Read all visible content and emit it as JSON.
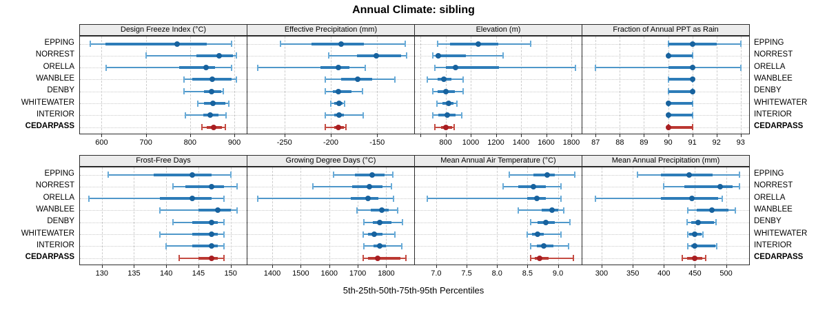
{
  "title": "Annual Climate: sibling",
  "caption": "5th-25th-50th-75th-95th Percentiles",
  "sites": [
    "EPPING",
    "NORREST",
    "ORELLA",
    "WANBLEE",
    "DENBY",
    "WHITEWATER",
    "INTERIOR",
    "CEDARPASS"
  ],
  "highlight_site": "CEDARPASS",
  "colors": {
    "normal": {
      "dot": "#17629e",
      "thick": "#2d7cb8",
      "thin": "#4f97c9",
      "cap": "#68abd8"
    },
    "highlight": {
      "dot": "#a81e22",
      "thick": "#bb3832",
      "thin": "#c44b42",
      "cap": "#c44b42"
    },
    "grid": "#c9c9c9",
    "strip_bg": "#ececec",
    "border": "#2a2a2a"
  },
  "chart_data": {
    "type": "dotplot-intervals",
    "percentile_labels": [
      "5th",
      "25th",
      "50th",
      "75th",
      "95th"
    ],
    "row_categories": [
      "EPPING",
      "NORREST",
      "ORELLA",
      "WANBLEE",
      "DENBY",
      "WHITEWATER",
      "INTERIOR",
      "CEDARPASS"
    ],
    "panels": [
      {
        "id": "design-freeze-index",
        "title": "Design Freeze Index (°C)",
        "row": 0,
        "col": 0,
        "xlim": [
          551,
          928
        ],
        "ticks": [
          {
            "v": 600,
            "label": "600"
          },
          {
            "v": 700,
            "label": "700"
          },
          {
            "v": 800,
            "label": "800"
          },
          {
            "v": 900,
            "label": "900"
          }
        ],
        "values": [
          [
            575,
            608,
            770,
            837,
            894
          ],
          [
            700,
            815,
            865,
            897,
            905
          ],
          [
            610,
            775,
            836,
            857,
            894
          ],
          [
            787,
            805,
            850,
            893,
            905
          ],
          [
            786,
            831,
            848,
            871,
            875
          ],
          [
            817,
            832,
            851,
            880,
            887
          ],
          [
            790,
            830,
            846,
            864,
            882
          ],
          [
            827,
            838,
            853,
            872,
            880
          ]
        ]
      },
      {
        "id": "effective-precipitation",
        "title": "Effective Precipitation (mm)",
        "row": 0,
        "col": 1,
        "xlim": [
          -290,
          -110
        ],
        "ticks": [
          {
            "v": -250,
            "label": "-250"
          },
          {
            "v": -200,
            "label": "-200"
          },
          {
            "v": -150,
            "label": "-150"
          }
        ],
        "values": [
          [
            -254,
            -221,
            -189,
            -164,
            -120
          ],
          [
            -202,
            -172,
            -151,
            -124,
            -118
          ],
          [
            -279,
            -211,
            -192,
            -180,
            -163
          ],
          [
            -206,
            -189,
            -171,
            -155,
            -131
          ],
          [
            -206,
            -198,
            -192,
            -178,
            -166
          ],
          [
            -200,
            -196,
            -191,
            -187,
            -185
          ],
          [
            -206,
            -196,
            -191,
            -186,
            -165
          ],
          [
            -206,
            -196,
            -192,
            -186,
            -184
          ]
        ]
      },
      {
        "id": "elevation",
        "title": "Elevation (m)",
        "row": 0,
        "col": 2,
        "xlim": [
          556,
          1882
        ],
        "ticks": [
          {
            "v": 600,
            "label": ""
          },
          {
            "v": 800,
            "label": "800"
          },
          {
            "v": 1000,
            "label": "1000"
          },
          {
            "v": 1200,
            "label": "1200"
          },
          {
            "v": 1400,
            "label": "1400"
          },
          {
            "v": 1600,
            "label": "1600"
          },
          {
            "v": 1800,
            "label": "1800"
          }
        ],
        "values": [
          [
            736,
            836,
            1060,
            1218,
            1478
          ],
          [
            696,
            718,
            745,
            960,
            1258
          ],
          [
            713,
            800,
            882,
            1227,
            1831
          ],
          [
            655,
            736,
            787,
            845,
            942
          ],
          [
            700,
            736,
            800,
            873,
            942
          ],
          [
            733,
            773,
            822,
            864,
            891
          ],
          [
            700,
            745,
            815,
            882,
            931
          ],
          [
            715,
            764,
            800,
            850,
            870
          ]
        ]
      },
      {
        "id": "fraction-ppt-rain",
        "title": "Fraction of Annual PPT as Rain",
        "row": 0,
        "col": 3,
        "xlim": [
          86.45,
          93.35
        ],
        "ticks": [
          {
            "v": 87,
            "label": "87"
          },
          {
            "v": 88,
            "label": "88"
          },
          {
            "v": 89,
            "label": "89"
          },
          {
            "v": 90,
            "label": "90"
          },
          {
            "v": 91,
            "label": "91"
          },
          {
            "v": 92,
            "label": "92"
          },
          {
            "v": 93,
            "label": "93"
          }
        ],
        "values": [
          [
            90,
            90,
            91,
            92,
            93
          ],
          [
            90,
            90,
            90,
            91,
            91
          ],
          [
            87,
            90,
            91,
            91,
            93
          ],
          [
            90,
            90,
            91,
            91,
            91
          ],
          [
            90,
            90,
            91,
            91,
            91
          ],
          [
            90,
            90,
            90,
            91,
            91
          ],
          [
            90,
            90,
            90,
            91,
            91
          ],
          [
            90,
            90,
            90,
            91,
            91
          ]
        ]
      },
      {
        "id": "frost-free-days",
        "title": "Frost-Free Days",
        "row": 1,
        "col": 0,
        "xlim": [
          126.6,
          152.5
        ],
        "ticks": [
          {
            "v": 130,
            "label": "130"
          },
          {
            "v": 135,
            "label": "135"
          },
          {
            "v": 140,
            "label": "140"
          },
          {
            "v": 145,
            "label": "145"
          },
          {
            "v": 150,
            "label": "150"
          }
        ],
        "values": [
          [
            131,
            138,
            144,
            147,
            150
          ],
          [
            141,
            143,
            147,
            149,
            151
          ],
          [
            128,
            139,
            144,
            147,
            149
          ],
          [
            139,
            145,
            148,
            150,
            151
          ],
          [
            141,
            144,
            147,
            148,
            149
          ],
          [
            139,
            144,
            147,
            148,
            149
          ],
          [
            140,
            144,
            147,
            148,
            149
          ],
          [
            142,
            145,
            147,
            148,
            149
          ]
        ]
      },
      {
        "id": "growing-degree-days",
        "title": "Growing Degree Days (°C)",
        "row": 1,
        "col": 1,
        "xlim": [
          1313,
          1898
        ],
        "ticks": [
          {
            "v": 1400,
            "label": "1400"
          },
          {
            "v": 1500,
            "label": "1500"
          },
          {
            "v": 1600,
            "label": "1600"
          },
          {
            "v": 1700,
            "label": "1700"
          },
          {
            "v": 1800,
            "label": "1800"
          }
        ],
        "values": [
          [
            1615,
            1690,
            1750,
            1795,
            1822
          ],
          [
            1542,
            1680,
            1740,
            1788,
            1818
          ],
          [
            1350,
            1675,
            1735,
            1772,
            1825
          ],
          [
            1698,
            1745,
            1785,
            1808,
            1840
          ],
          [
            1722,
            1754,
            1778,
            1818,
            1858
          ],
          [
            1718,
            1736,
            1758,
            1788,
            1830
          ],
          [
            1722,
            1756,
            1776,
            1800,
            1855
          ],
          [
            1720,
            1736,
            1770,
            1850,
            1868
          ]
        ]
      },
      {
        "id": "mean-annual-air-temperature",
        "title": "Mean Annual Air Temperature (°C)",
        "row": 1,
        "col": 2,
        "xlim": [
          6.65,
          9.39
        ],
        "ticks": [
          {
            "v": 7.0,
            "label": "7.0"
          },
          {
            "v": 7.5,
            "label": "7.5"
          },
          {
            "v": 8.0,
            "label": "8.0"
          },
          {
            "v": 8.5,
            "label": "8.5"
          },
          {
            "v": 9.0,
            "label": "9.0"
          }
        ],
        "values": [
          [
            8.2,
            8.6,
            8.82,
            8.95,
            9.28
          ],
          [
            8.1,
            8.35,
            8.6,
            8.8,
            9.05
          ],
          [
            6.85,
            8.5,
            8.65,
            8.8,
            9.05
          ],
          [
            8.35,
            8.73,
            8.9,
            9.0,
            9.1
          ],
          [
            8.55,
            8.67,
            8.8,
            8.95,
            9.2
          ],
          [
            8.5,
            8.57,
            8.67,
            8.77,
            9.05
          ],
          [
            8.55,
            8.65,
            8.77,
            8.93,
            9.17
          ],
          [
            8.55,
            8.62,
            8.7,
            8.85,
            9.25
          ]
        ]
      },
      {
        "id": "mean-annual-precipitation",
        "title": "Mean Annual Precipitation (mm)",
        "row": 1,
        "col": 3,
        "xlim": [
          269,
          537
        ],
        "ticks": [
          {
            "v": 300,
            "label": "300"
          },
          {
            "v": 350,
            "label": "350"
          },
          {
            "v": 400,
            "label": "400"
          },
          {
            "v": 450,
            "label": "450"
          },
          {
            "v": 500,
            "label": "500"
          }
        ],
        "values": [
          [
            358,
            395,
            441,
            478,
            522
          ],
          [
            400,
            433,
            490,
            510,
            522
          ],
          [
            290,
            395,
            445,
            487,
            494
          ],
          [
            438,
            453,
            477,
            504,
            515
          ],
          [
            437,
            444,
            455,
            481,
            484
          ],
          [
            438,
            441,
            450,
            461,
            463
          ],
          [
            438,
            444,
            450,
            483,
            485
          ],
          [
            430,
            437,
            450,
            462,
            467
          ]
        ]
      }
    ]
  }
}
